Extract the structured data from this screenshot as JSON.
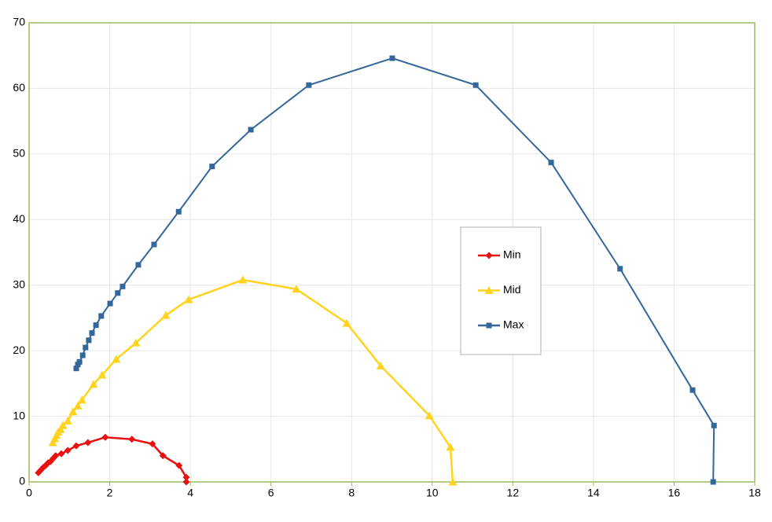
{
  "chart_data": {
    "type": "line",
    "grid": true,
    "legend": "center-right",
    "xlim": [
      0,
      18
    ],
    "xticks": [
      0,
      2,
      4,
      6,
      8,
      10,
      12,
      14,
      16,
      18
    ],
    "ylim": [
      0,
      70
    ],
    "yticks": [
      0,
      10,
      20,
      30,
      40,
      50,
      60,
      70
    ],
    "series": [
      {
        "name": "Min",
        "color": "#e81010",
        "marker": "diamond",
        "x": [
          0.23,
          0.29,
          0.35,
          0.41,
          0.47,
          0.53,
          0.6,
          0.66,
          0.8,
          0.96,
          1.17,
          1.46,
          1.89,
          2.55,
          3.06,
          3.32,
          3.72,
          3.9,
          3.9
        ],
        "values": [
          1.4,
          1.8,
          2.2,
          2.5,
          2.9,
          3.1,
          3.6,
          4.0,
          4.3,
          4.8,
          5.5,
          6.0,
          6.8,
          6.5,
          5.8,
          4.0,
          2.5,
          0.7,
          0
        ]
      },
      {
        "name": "Mid",
        "color": "#ffd320",
        "marker": "triangle",
        "x": [
          0.59,
          0.64,
          0.68,
          0.72,
          0.78,
          0.84,
          0.96,
          1.09,
          1.21,
          1.31,
          1.6,
          1.81,
          2.16,
          2.65,
          3.39,
          3.96,
          5.3,
          6.63,
          7.88,
          8.72,
          9.93,
          10.45,
          10.51
        ],
        "values": [
          6.0,
          6.6,
          7.1,
          7.6,
          8.0,
          8.6,
          9.3,
          10.7,
          11.6,
          12.5,
          14.9,
          16.3,
          18.7,
          21.2,
          25.4,
          27.8,
          30.8,
          29.4,
          24.2,
          17.7,
          10.1,
          5.3,
          0
        ]
      },
      {
        "name": "Max",
        "color": "#336699",
        "marker": "square",
        "x": [
          1.17,
          1.21,
          1.25,
          1.33,
          1.4,
          1.48,
          1.56,
          1.66,
          1.79,
          2.01,
          2.2,
          2.32,
          2.71,
          3.1,
          3.71,
          4.54,
          5.5,
          6.94,
          9.01,
          11.08,
          12.95,
          14.66,
          16.46,
          16.99,
          16.97
        ],
        "values": [
          17.3,
          17.9,
          18.3,
          19.3,
          20.5,
          21.6,
          22.7,
          23.9,
          25.3,
          27.2,
          28.8,
          29.8,
          33.1,
          36.2,
          41.2,
          48.1,
          53.7,
          60.5,
          64.6,
          60.5,
          48.7,
          32.5,
          14.0,
          8.6,
          0
        ]
      }
    ]
  }
}
